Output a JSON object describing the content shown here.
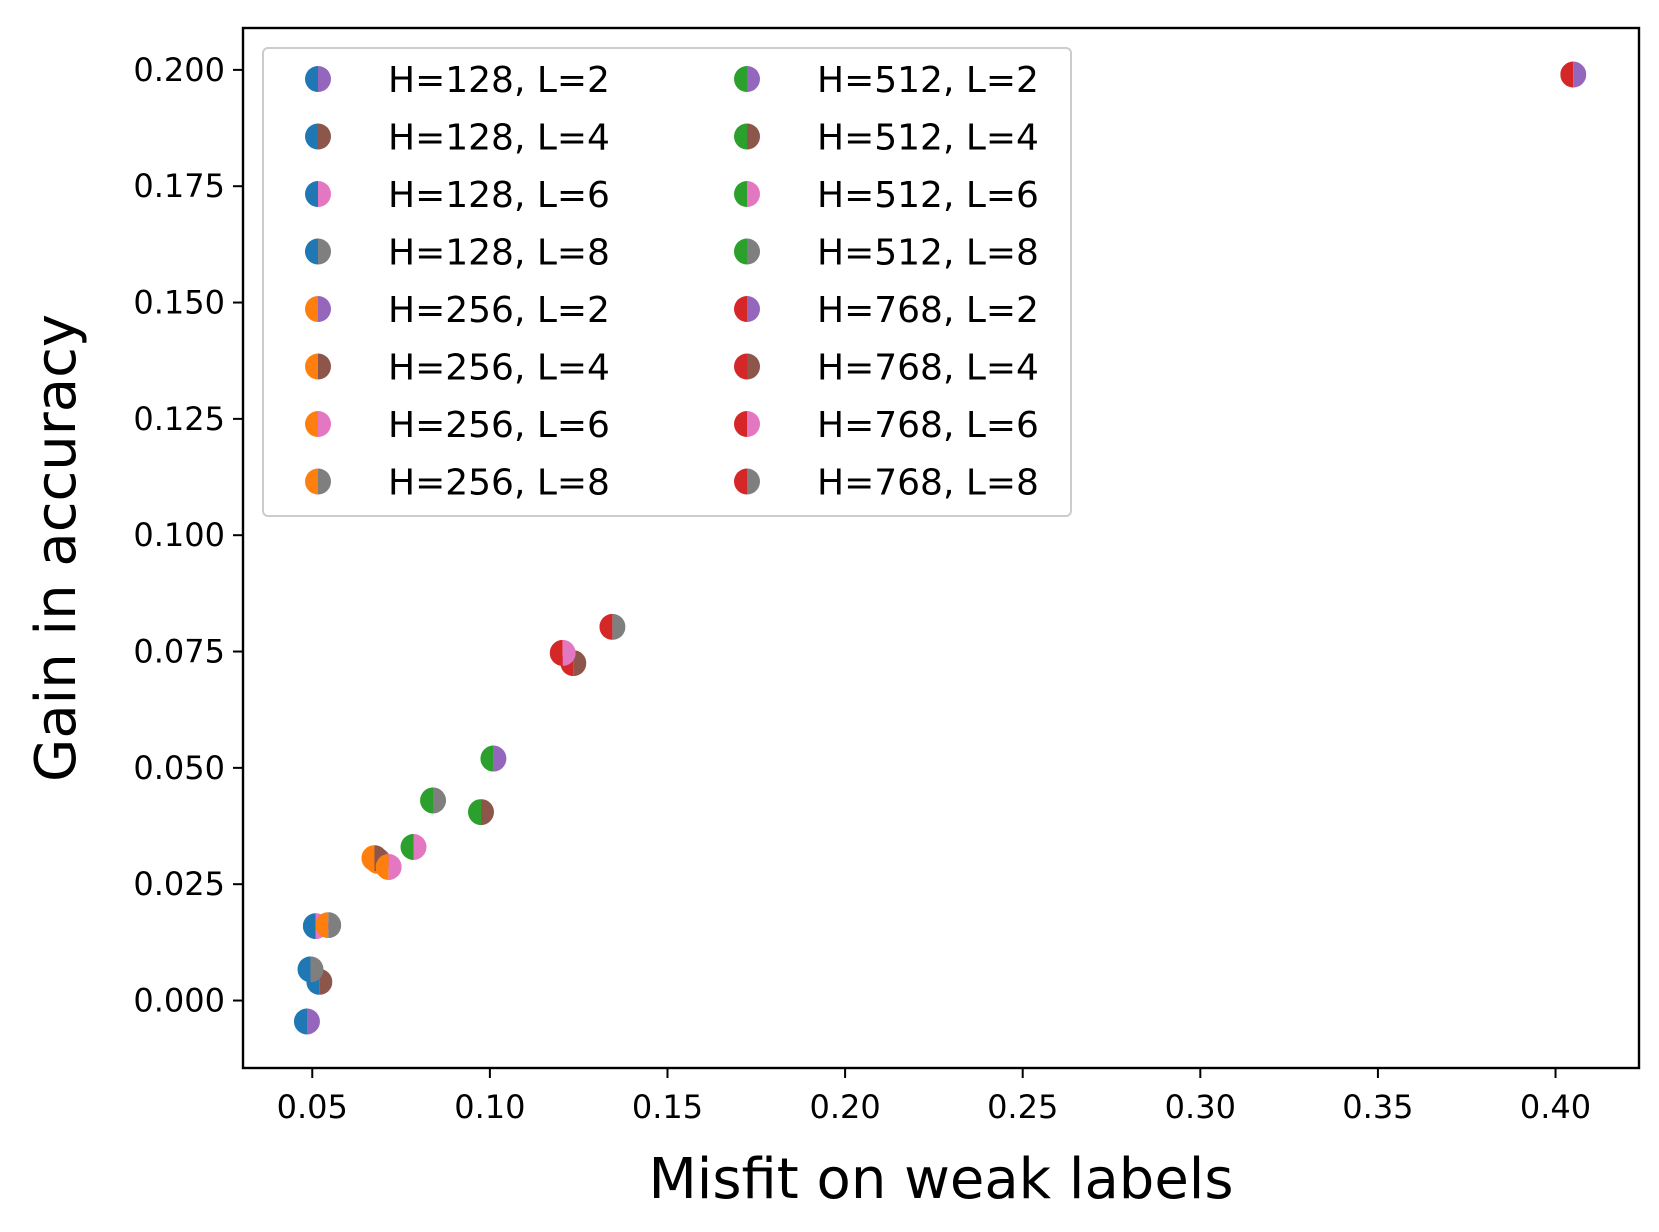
{
  "colors": {
    "H128": "#1f77b4",
    "H256": "#ff7f0e",
    "H512": "#2ca02c",
    "H768": "#d62728",
    "L2": "#9467bd",
    "L4": "#8c564b",
    "L6": "#e377c2",
    "L8": "#7f7f7f"
  },
  "chart_data": {
    "type": "scatter",
    "title": "",
    "xlabel": "Misfit on weak labels",
    "ylabel": "Gain in accuracy",
    "xlim": [
      0.0305,
      0.4235
    ],
    "ylim": [
      -0.0145,
      0.209
    ],
    "xticks": [
      {
        "value": 0.05,
        "label": "0.05"
      },
      {
        "value": 0.1,
        "label": "0.10"
      },
      {
        "value": 0.15,
        "label": "0.15"
      },
      {
        "value": 0.2,
        "label": "0.20"
      },
      {
        "value": 0.25,
        "label": "0.25"
      },
      {
        "value": 0.3,
        "label": "0.30"
      },
      {
        "value": 0.35,
        "label": "0.35"
      },
      {
        "value": 0.4,
        "label": "0.40"
      }
    ],
    "yticks": [
      {
        "value": 0.0,
        "label": "0.000"
      },
      {
        "value": 0.025,
        "label": "0.025"
      },
      {
        "value": 0.05,
        "label": "0.050"
      },
      {
        "value": 0.075,
        "label": "0.075"
      },
      {
        "value": 0.1,
        "label": "0.100"
      },
      {
        "value": 0.125,
        "label": "0.125"
      },
      {
        "value": 0.15,
        "label": "0.150"
      },
      {
        "value": 0.175,
        "label": "0.175"
      },
      {
        "value": 0.2,
        "label": "0.200"
      }
    ],
    "legend_location": "top-left",
    "series": [
      {
        "name": "H=128, L=2",
        "H": "H128",
        "L": "L2",
        "x": 0.0485,
        "y": -0.0045
      },
      {
        "name": "H=128, L=4",
        "H": "H128",
        "L": "L4",
        "x": 0.052,
        "y": 0.004
      },
      {
        "name": "H=128, L=6",
        "H": "H128",
        "L": "L6",
        "x": 0.051,
        "y": 0.016
      },
      {
        "name": "H=128, L=8",
        "H": "H128",
        "L": "L8",
        "x": 0.0495,
        "y": 0.0067
      },
      {
        "name": "H=256, L=2",
        "H": "H256",
        "L": "L2",
        "x": 0.0685,
        "y": 0.03
      },
      {
        "name": "H=256, L=4",
        "H": "H256",
        "L": "L4",
        "x": 0.0675,
        "y": 0.0306
      },
      {
        "name": "H=256, L=6",
        "H": "H256",
        "L": "L6",
        "x": 0.0715,
        "y": 0.0287
      },
      {
        "name": "H=256, L=8",
        "H": "H256",
        "L": "L8",
        "x": 0.0545,
        "y": 0.0162
      },
      {
        "name": "H=512, L=2",
        "H": "H512",
        "L": "L2",
        "x": 0.101,
        "y": 0.052
      },
      {
        "name": "H=512, L=4",
        "H": "H512",
        "L": "L4",
        "x": 0.0975,
        "y": 0.0405
      },
      {
        "name": "H=512, L=6",
        "H": "H512",
        "L": "L6",
        "x": 0.0785,
        "y": 0.033
      },
      {
        "name": "H=512, L=8",
        "H": "H512",
        "L": "L8",
        "x": 0.084,
        "y": 0.043
      },
      {
        "name": "H=768, L=2",
        "H": "H768",
        "L": "L2",
        "x": 0.405,
        "y": 0.199
      },
      {
        "name": "H=768, L=4",
        "H": "H768",
        "L": "L4",
        "x": 0.1235,
        "y": 0.0725
      },
      {
        "name": "H=768, L=6",
        "H": "H768",
        "L": "L6",
        "x": 0.1205,
        "y": 0.0747
      },
      {
        "name": "H=768, L=8",
        "H": "H768",
        "L": "L8",
        "x": 0.1345,
        "y": 0.0803
      }
    ]
  }
}
